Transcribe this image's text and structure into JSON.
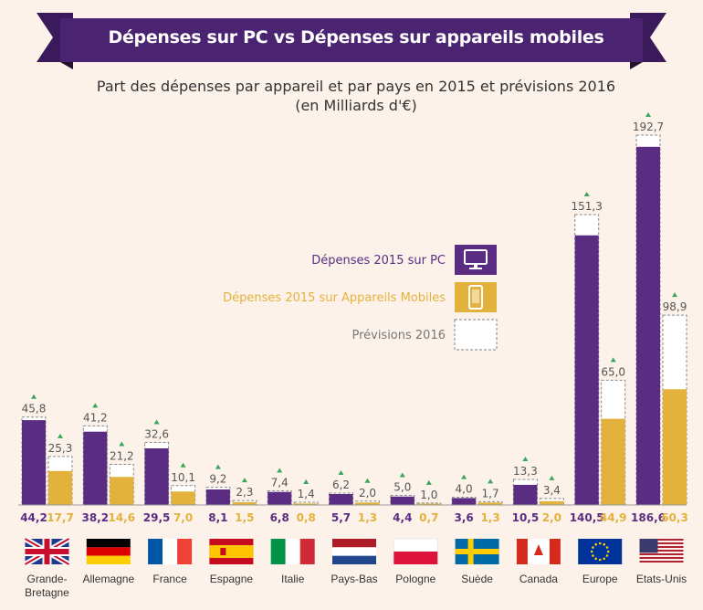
{
  "colors": {
    "pc": "#5b2d82",
    "mobile": "#e3b23c",
    "background": "#fcf2ea",
    "banner": "#4a2470"
  },
  "header": {
    "title": "Dépenses sur PC vs Dépenses sur appareils mobiles",
    "subtitle_line1": "Part des dépenses par appareil et par pays en 2015 et prévisions 2016",
    "subtitle_line2": "(en Milliards d'€)"
  },
  "legend": [
    {
      "label": "Dépenses 2015 sur PC",
      "icon": "monitor-icon"
    },
    {
      "label": "Dépenses 2015 sur Appareils Mobiles",
      "icon": "smartphone-icon"
    },
    {
      "label": "Prévisions 2016",
      "icon": "forecast-box-icon"
    }
  ],
  "chart_data": {
    "type": "bar",
    "categories": [
      "Grande-Bretagne",
      "Allemagne",
      "France",
      "Espagne",
      "Italie",
      "Pays-Bas",
      "Pologne",
      "Suède",
      "Canada",
      "Europe",
      "Etats-Unis"
    ],
    "category_lines": [
      [
        "Grande-",
        "Bretagne"
      ],
      [
        "Allemagne"
      ],
      [
        "France"
      ],
      [
        "Espagne"
      ],
      [
        "Italie"
      ],
      [
        "Pays-Bas"
      ],
      [
        "Pologne"
      ],
      [
        "Suède"
      ],
      [
        "Canada"
      ],
      [
        "Europe"
      ],
      [
        "Etats-Unis"
      ]
    ],
    "flags": [
      "uk-flag-icon",
      "germany-flag-icon",
      "france-flag-icon",
      "spain-flag-icon",
      "italy-flag-icon",
      "netherlands-flag-icon",
      "poland-flag-icon",
      "sweden-flag-icon",
      "canada-flag-icon",
      "eu-flag-icon",
      "usa-flag-icon"
    ],
    "series": [
      {
        "name": "Dépenses 2015 sur PC",
        "values": [
          44.2,
          38.2,
          29.5,
          8.1,
          6.8,
          5.7,
          4.4,
          3.6,
          10.5,
          140.5,
          186.6
        ],
        "labels": [
          "44,2",
          "38,2",
          "29,5",
          "8,1",
          "6,8",
          "5,7",
          "4,4",
          "3,6",
          "10,5",
          "140,5",
          "186,6"
        ],
        "forecast_2016": [
          45.8,
          41.2,
          32.6,
          9.2,
          7.4,
          6.2,
          5.0,
          4.0,
          13.3,
          151.3,
          192.7
        ],
        "forecast_labels": [
          "45,8",
          "41,2",
          "32,6",
          "9,2",
          "7,4",
          "6,2",
          "5,0",
          "4,0",
          "13,3",
          "151,3",
          "192,7"
        ]
      },
      {
        "name": "Dépenses 2015 sur Appareils Mobiles",
        "values": [
          17.7,
          14.6,
          7.0,
          1.5,
          0.8,
          1.3,
          0.7,
          1.3,
          2.0,
          44.9,
          60.3
        ],
        "labels": [
          "17,7",
          "14,6",
          "7,0",
          "1,5",
          "0,8",
          "1,3",
          "0,7",
          "1,3",
          "2,0",
          "44,9",
          "60,3"
        ],
        "forecast_2016": [
          25.3,
          21.2,
          10.1,
          2.3,
          1.4,
          2.0,
          1.0,
          1.7,
          3.4,
          65.0,
          98.9
        ],
        "forecast_labels": [
          "25,3",
          "21,2",
          "10,1",
          "2,3",
          "1,4",
          "2,0",
          "1,0",
          "1,7",
          "3,4",
          "65,0",
          "98,9"
        ]
      }
    ],
    "ylim": [
      0,
      200
    ],
    "grid": false,
    "legend_position": "center"
  }
}
